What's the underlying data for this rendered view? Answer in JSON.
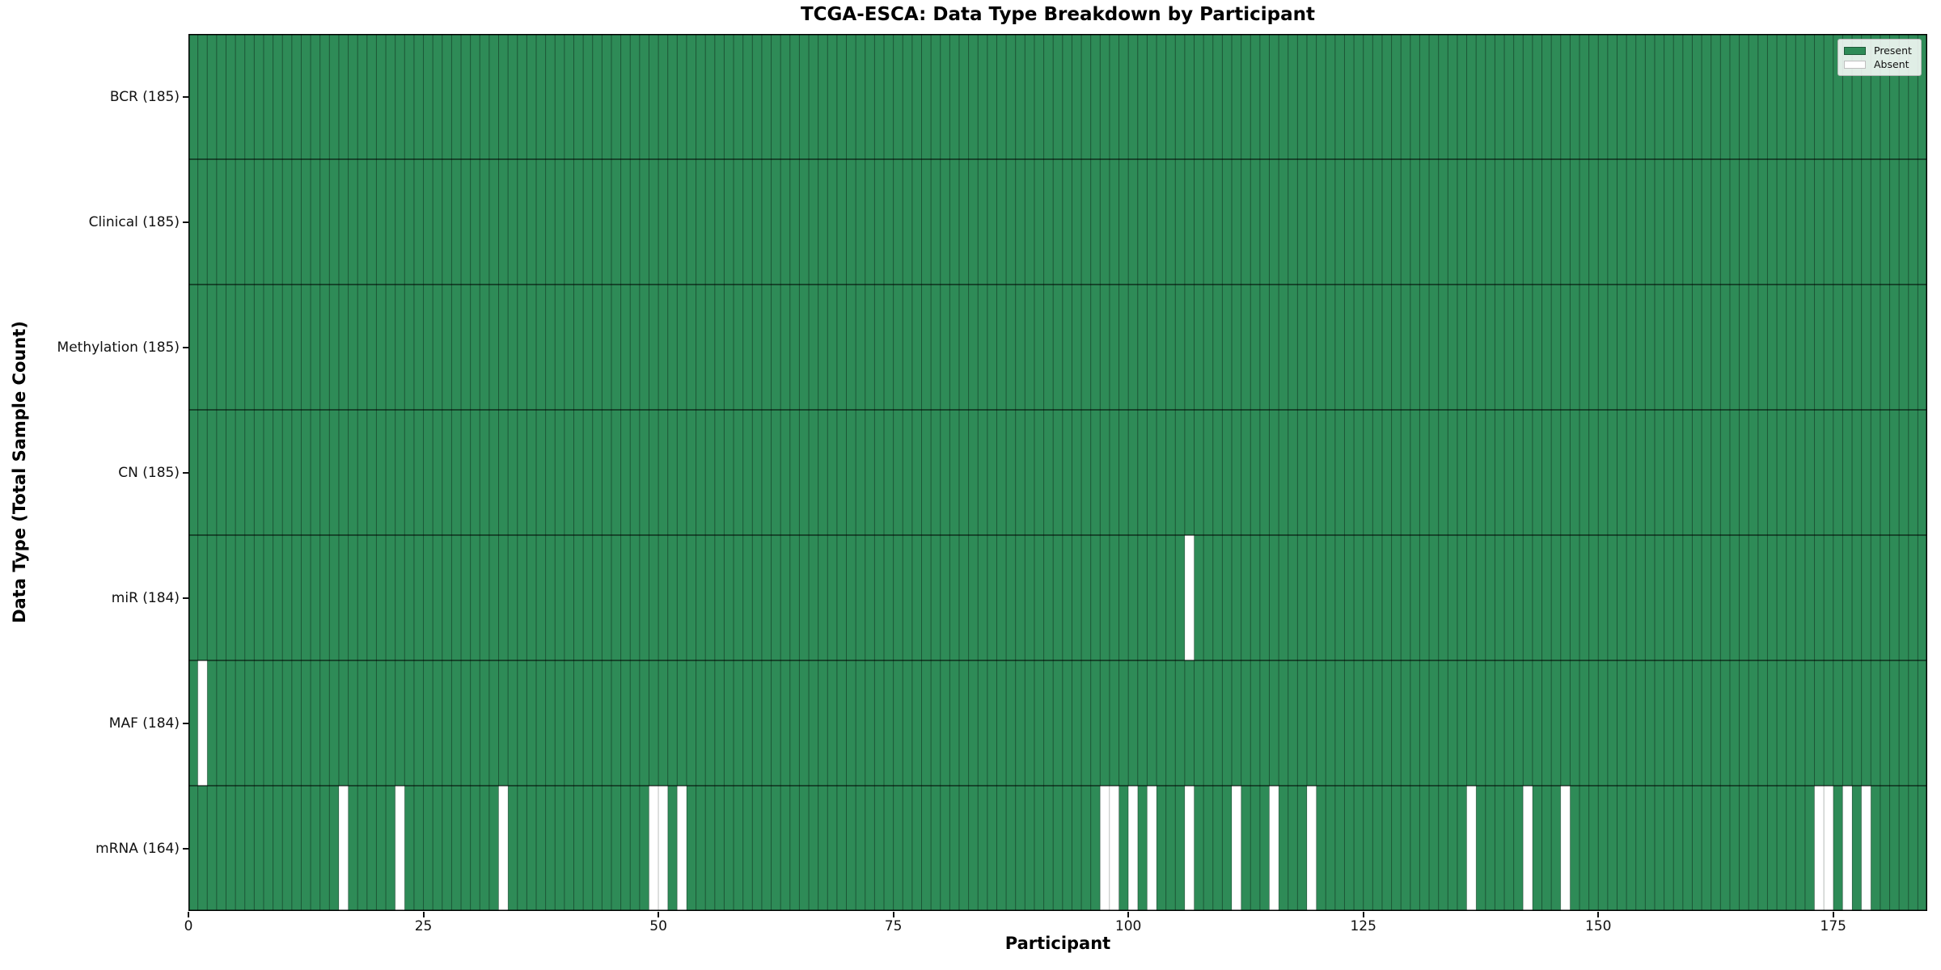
{
  "title": "TCGA-ESCA: Data Type Breakdown by Participant",
  "xlabel": "Participant",
  "ylabel": "Data Type (Total Sample Count)",
  "legend": {
    "present_label": "Present",
    "absent_label": "Absent"
  },
  "colors": {
    "present": "#2e8b57",
    "absent": "#ffffff",
    "cell_edge": "rgba(0,0,0,0.38)",
    "absent_cell_edge": "rgba(0,0,0,0.15)",
    "row_separator": "rgba(0,0,0,0.8)",
    "axis": "#000000"
  },
  "chart_data": {
    "type": "heatmap",
    "title": "TCGA-ESCA: Data Type Breakdown by Participant",
    "xlabel": "Participant",
    "ylabel": "Data Type (Total Sample Count)",
    "x_ticks": [
      0,
      25,
      50,
      75,
      100,
      125,
      150,
      175
    ],
    "x_range": [
      0,
      185
    ],
    "n_participants": 185,
    "cell_states": [
      "Present",
      "Absent"
    ],
    "legend_entries": [
      "Present",
      "Absent"
    ],
    "legend_position": "upper right",
    "rows": [
      {
        "name": "BCR",
        "label": "BCR (185)",
        "total_sample_count": 185,
        "absent_participants": []
      },
      {
        "name": "Clinical",
        "label": "Clinical (185)",
        "total_sample_count": 185,
        "absent_participants": []
      },
      {
        "name": "Methylation",
        "label": "Methylation (185)",
        "total_sample_count": 185,
        "absent_participants": []
      },
      {
        "name": "CN",
        "label": "CN (185)",
        "total_sample_count": 185,
        "absent_participants": []
      },
      {
        "name": "miR",
        "label": "miR (184)",
        "total_sample_count": 184,
        "absent_participants": [
          106
        ]
      },
      {
        "name": "MAF",
        "label": "MAF (184)",
        "total_sample_count": 184,
        "absent_participants": [
          1
        ]
      },
      {
        "name": "mRNA",
        "label": "mRNA (164)",
        "total_sample_count": 164,
        "absent_participants": [
          16,
          22,
          33,
          49,
          50,
          52,
          97,
          98,
          100,
          102,
          106,
          111,
          115,
          119,
          136,
          142,
          146,
          173,
          174,
          176,
          178
        ]
      }
    ]
  }
}
